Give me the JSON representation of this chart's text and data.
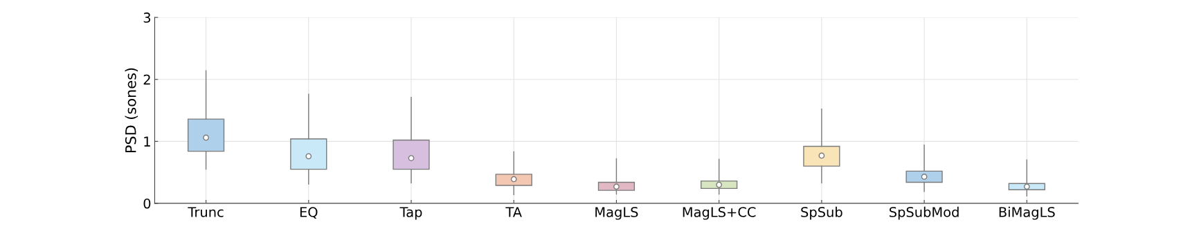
{
  "chart_data": {
    "type": "box",
    "ylabel": "PSD (sones)",
    "categories": [
      "Trunc",
      "EQ",
      "Tap",
      "TA",
      "MagLS",
      "MagLS+CC",
      "SpSub",
      "SpSubMod",
      "BiMagLS"
    ],
    "colors": [
      "#afd0ea",
      "#c9e9f8",
      "#d7bfdf",
      "#f4c7b2",
      "#e2b8c4",
      "#d7e6c1",
      "#f9e4b7",
      "#afd0ea",
      "#c9e9f8"
    ],
    "boxes": [
      {
        "low": 0.55,
        "q1": 0.84,
        "median": 1.06,
        "q3": 1.36,
        "high": 2.14
      },
      {
        "low": 0.31,
        "q1": 0.55,
        "median": 0.76,
        "q3": 1.04,
        "high": 1.76
      },
      {
        "low": 0.33,
        "q1": 0.55,
        "median": 0.73,
        "q3": 1.02,
        "high": 1.71
      },
      {
        "low": 0.14,
        "q1": 0.29,
        "median": 0.39,
        "q3": 0.47,
        "high": 0.83
      },
      {
        "low": 0.15,
        "q1": 0.21,
        "median": 0.27,
        "q3": 0.34,
        "high": 0.72
      },
      {
        "low": 0.15,
        "q1": 0.24,
        "median": 0.3,
        "q3": 0.36,
        "high": 0.71
      },
      {
        "low": 0.33,
        "q1": 0.6,
        "median": 0.77,
        "q3": 0.92,
        "high": 1.52
      },
      {
        "low": 0.19,
        "q1": 0.34,
        "median": 0.43,
        "q3": 0.52,
        "high": 0.94
      },
      {
        "low": 0.12,
        "q1": 0.22,
        "median": 0.27,
        "q3": 0.32,
        "high": 0.7
      }
    ],
    "ylim": [
      0,
      3
    ],
    "yticks": [
      0,
      1,
      2,
      3
    ],
    "grid": true
  }
}
